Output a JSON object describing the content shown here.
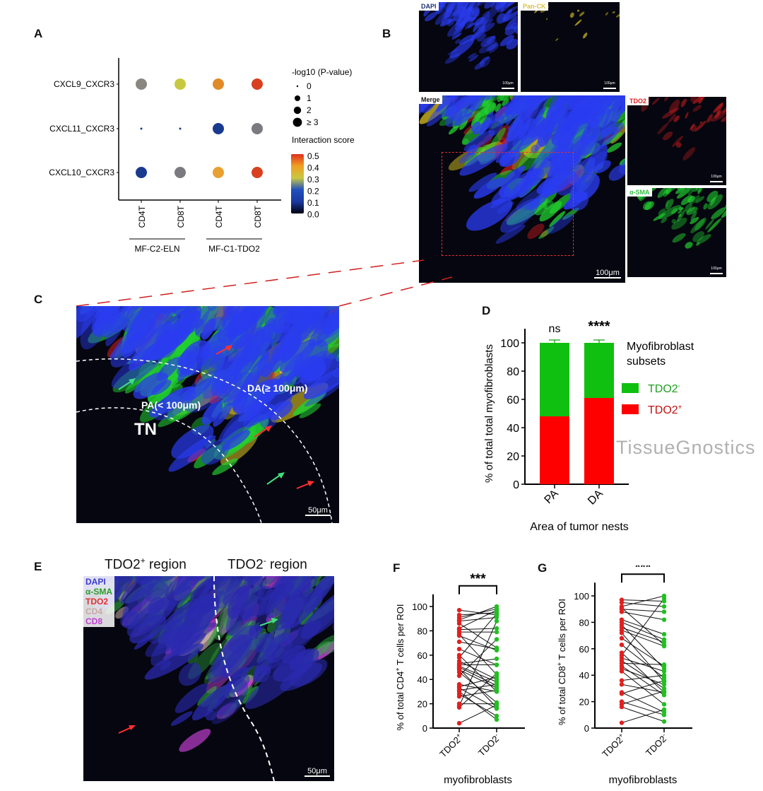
{
  "panels": {
    "A": "A",
    "B": "B",
    "C": "C",
    "D": "D",
    "E": "E",
    "F": "F",
    "G": "G"
  },
  "panel_b": {
    "dapi": "DAPI",
    "panck": "Pan-CK",
    "merge": "Merge",
    "tdo2": "TDO2",
    "asma": "α-SMA",
    "scale_small": "100μm",
    "scale_merge": "100μm",
    "colors": {
      "dapi": "#2a3cf0",
      "panck": "#e8d020",
      "tdo2": "#e02020",
      "asma": "#22d030"
    }
  },
  "panel_c": {
    "tn": "TN",
    "pa": "PA(< 100μm)",
    "da": "DA(≥ 100μm)",
    "scale": "50μm"
  },
  "panel_e": {
    "title_pos": "TDO2",
    "title_pos_sup": "+",
    "title_pos_rest": " region",
    "title_neg": "TDO2",
    "title_neg_sup": "-",
    "title_neg_rest": " region",
    "legend": [
      {
        "label": "DAPI",
        "color": "#3a3ad0"
      },
      {
        "label": "α-SMA",
        "color": "#2a9a2a"
      },
      {
        "label": "TDO2",
        "color": "#e03030"
      },
      {
        "label": "CD4",
        "color": "#c8a8a0"
      },
      {
        "label": "CD8",
        "color": "#c040d0"
      }
    ],
    "scale": "50μm"
  },
  "watermark": "TissueGnostics",
  "chart_data": [
    {
      "panel": "A",
      "type": "scatter",
      "rows": [
        "CXCL9_CXCR3",
        "CXCL11_CXCR3",
        "CXCL10_CXCR3"
      ],
      "columns": [
        "CD4T",
        "CD8T",
        "CD4T",
        "CD8T"
      ],
      "groups": [
        {
          "label": "MF-C2-ELN",
          "columns": [
            0,
            1
          ]
        },
        {
          "label": "MF-C1-TDO2",
          "columns": [
            2,
            3
          ]
        }
      ],
      "size_legend_title": "-log10 (P-value)",
      "size_legend_title_italic": "P",
      "size_legend": [
        "0",
        "1",
        "2",
        "≥ 3"
      ],
      "color_legend_title": "Interaction score",
      "color_ticks": [
        "0.5",
        "0.4",
        "0.3",
        "0.2",
        "0.1",
        "0.0"
      ],
      "colorscale": [
        "#000010",
        "#1a3aa0",
        "#2050c0",
        "#c8c840",
        "#f0a020",
        "#e03020"
      ],
      "points": [
        {
          "row": 0,
          "col": 0,
          "neglog10p": 3,
          "score": 0.22
        },
        {
          "row": 0,
          "col": 1,
          "neglog10p": 3,
          "score": 0.31
        },
        {
          "row": 0,
          "col": 2,
          "neglog10p": 3,
          "score": 0.4
        },
        {
          "row": 0,
          "col": 3,
          "neglog10p": 3,
          "score": 0.48
        },
        {
          "row": 1,
          "col": 0,
          "neglog10p": 0,
          "score": 0.1
        },
        {
          "row": 1,
          "col": 1,
          "neglog10p": 0,
          "score": 0.1
        },
        {
          "row": 1,
          "col": 2,
          "neglog10p": 3,
          "score": 0.12
        },
        {
          "row": 1,
          "col": 3,
          "neglog10p": 3,
          "score": 0.22
        },
        {
          "row": 2,
          "col": 0,
          "neglog10p": 3,
          "score": 0.12
        },
        {
          "row": 2,
          "col": 1,
          "neglog10p": 3,
          "score": 0.22
        },
        {
          "row": 2,
          "col": 2,
          "neglog10p": 3,
          "score": 0.38
        },
        {
          "row": 2,
          "col": 3,
          "neglog10p": 3,
          "score": 0.46
        }
      ],
      "point_colors": [
        "#888880",
        "#c8c840",
        "#e08a28",
        "#d84020",
        "#1a3a90",
        "#1a3a90",
        "#1a3a90",
        "#7a7a80",
        "#1a3a90",
        "#7a7a80",
        "#e8a030",
        "#d84020"
      ]
    },
    {
      "panel": "D",
      "type": "bar",
      "stacked": true,
      "categories": [
        "PA",
        "DA"
      ],
      "series": [
        {
          "name": "TDO2+",
          "name_base": "TDO2",
          "name_sup": "+",
          "values": [
            48,
            61
          ],
          "err": [
            2,
            2
          ],
          "color": "#ff0000"
        },
        {
          "name": "TDO2-",
          "name_base": "TDO2",
          "name_sup": "-",
          "values": [
            52,
            39
          ],
          "err": [
            2,
            2
          ],
          "color": "#10c010"
        }
      ],
      "significance": [
        "ns",
        "****"
      ],
      "ylabel": "% of total total myofibroblasts",
      "xlabel": "Area of tumor nests",
      "legend_title": "Myofibroblast subsets",
      "ylim": [
        0,
        110
      ],
      "yticks": [
        0,
        20,
        40,
        60,
        80,
        100
      ]
    },
    {
      "panel": "F",
      "type": "scatter",
      "paired": true,
      "categories": [
        "TDO2+",
        "TDO2-"
      ],
      "cat_base": "TDO2",
      "cat_sups": [
        "+",
        "-"
      ],
      "ylabel": "% of total CD4+ T cells per ROI",
      "ylabel_pre": "% of total CD4",
      "ylabel_sup": "+",
      "ylabel_post": " T cells per ROI",
      "xlabel": "myofibroblasts",
      "significance": "***",
      "ylim": [
        0,
        110
      ],
      "yticks": [
        0,
        20,
        40,
        60,
        80,
        100
      ],
      "colors": [
        "#e02020",
        "#20c020"
      ],
      "pairs": [
        [
          97,
          93
        ],
        [
          93,
          95
        ],
        [
          91,
          98
        ],
        [
          89,
          100
        ],
        [
          88,
          91
        ],
        [
          86,
          66
        ],
        [
          82,
          97
        ],
        [
          81,
          82
        ],
        [
          79,
          79
        ],
        [
          77,
          44
        ],
        [
          76,
          64
        ],
        [
          71,
          65
        ],
        [
          65,
          52
        ],
        [
          60,
          30
        ],
        [
          58,
          94
        ],
        [
          55,
          40
        ],
        [
          53,
          57
        ],
        [
          52,
          52
        ],
        [
          51,
          38
        ],
        [
          50,
          35
        ],
        [
          49,
          17
        ],
        [
          48,
          33
        ],
        [
          46,
          21
        ],
        [
          43,
          73
        ],
        [
          36,
          30
        ],
        [
          34,
          42
        ],
        [
          33,
          16
        ],
        [
          31,
          36
        ],
        [
          30,
          7
        ],
        [
          28,
          10
        ],
        [
          26,
          31
        ],
        [
          20,
          20
        ],
        [
          18,
          88
        ],
        [
          17,
          45
        ],
        [
          4,
          19
        ]
      ]
    },
    {
      "panel": "G",
      "type": "scatter",
      "paired": true,
      "categories": [
        "TDO2+",
        "TDO2-"
      ],
      "cat_base": "TDO2",
      "cat_sups": [
        "+",
        "-"
      ],
      "ylabel": "% of total CD8+ T cells per ROI",
      "ylabel_pre": "% of total CD8",
      "ylabel_sup": "+",
      "ylabel_post": " T cells per ROI",
      "xlabel": "myofibroblasts",
      "significance": "***",
      "ylim": [
        0,
        110
      ],
      "yticks": [
        0,
        20,
        40,
        60,
        80,
        100
      ],
      "colors": [
        "#e02020",
        "#20c020"
      ],
      "pairs": [
        [
          97,
          96
        ],
        [
          95,
          92
        ],
        [
          92,
          100
        ],
        [
          91,
          63
        ],
        [
          90,
          88
        ],
        [
          88,
          82
        ],
        [
          82,
          71
        ],
        [
          80,
          67
        ],
        [
          78,
          45
        ],
        [
          76,
          65
        ],
        [
          74,
          62
        ],
        [
          72,
          35
        ],
        [
          68,
          47
        ],
        [
          63,
          38
        ],
        [
          57,
          27
        ],
        [
          55,
          98
        ],
        [
          53,
          43
        ],
        [
          51,
          30
        ],
        [
          49,
          48
        ],
        [
          47,
          25
        ],
        [
          45,
          33
        ],
        [
          43,
          18
        ],
        [
          36,
          40
        ],
        [
          33,
          27
        ],
        [
          27,
          12
        ],
        [
          26,
          36
        ],
        [
          20,
          10
        ],
        [
          18,
          28
        ],
        [
          16,
          5
        ],
        [
          4,
          14
        ]
      ]
    }
  ]
}
